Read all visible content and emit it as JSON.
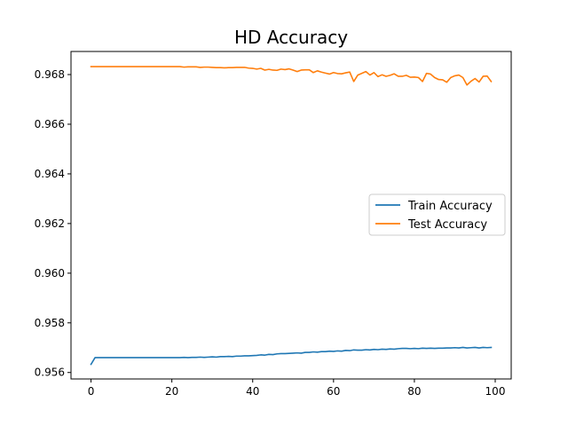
{
  "chart_data": {
    "type": "line",
    "title": "HD Accuracy",
    "xlabel": "",
    "ylabel": "",
    "xlim": [
      -4.95,
      103.95
    ],
    "ylim": [
      0.95574,
      0.96893
    ],
    "xticks": [
      0,
      20,
      40,
      60,
      80,
      100
    ],
    "yticks": [
      0.956,
      0.958,
      0.96,
      0.962,
      0.964,
      0.966,
      0.968
    ],
    "ytick_labels": [
      "0.956",
      "0.958",
      "0.960",
      "0.962",
      "0.964",
      "0.966",
      "0.968"
    ],
    "grid": false,
    "legend_position": "center-right",
    "series": [
      {
        "name": "Train Accuracy",
        "color": "#1f77b4",
        "x": [
          0,
          1,
          2,
          3,
          4,
          5,
          6,
          7,
          8,
          9,
          10,
          11,
          12,
          13,
          14,
          15,
          16,
          17,
          18,
          19,
          20,
          21,
          22,
          23,
          24,
          25,
          26,
          27,
          28,
          29,
          30,
          31,
          32,
          33,
          34,
          35,
          36,
          37,
          38,
          39,
          40,
          41,
          42,
          43,
          44,
          45,
          46,
          47,
          48,
          49,
          50,
          51,
          52,
          53,
          54,
          55,
          56,
          57,
          58,
          59,
          60,
          61,
          62,
          63,
          64,
          65,
          66,
          67,
          68,
          69,
          70,
          71,
          72,
          73,
          74,
          75,
          76,
          77,
          78,
          79,
          80,
          81,
          82,
          83,
          84,
          85,
          86,
          87,
          88,
          89,
          90,
          91,
          92,
          93,
          94,
          95,
          96,
          97,
          98,
          99
        ],
        "values": [
          0.95633,
          0.9566,
          0.9566,
          0.9566,
          0.9566,
          0.9566,
          0.9566,
          0.9566,
          0.9566,
          0.9566,
          0.9566,
          0.9566,
          0.9566,
          0.9566,
          0.9566,
          0.9566,
          0.9566,
          0.9566,
          0.9566,
          0.9566,
          0.9566,
          0.9566,
          0.9566,
          0.95661,
          0.9566,
          0.95661,
          0.95661,
          0.95662,
          0.95661,
          0.95662,
          0.95663,
          0.95662,
          0.95664,
          0.95664,
          0.95665,
          0.95664,
          0.95666,
          0.95666,
          0.95667,
          0.95667,
          0.95668,
          0.95669,
          0.95671,
          0.9567,
          0.95673,
          0.95672,
          0.95675,
          0.95676,
          0.95676,
          0.95677,
          0.95678,
          0.95679,
          0.95678,
          0.95681,
          0.95681,
          0.95683,
          0.95682,
          0.95684,
          0.95684,
          0.95686,
          0.95685,
          0.95687,
          0.95686,
          0.95689,
          0.95688,
          0.95691,
          0.9569,
          0.9569,
          0.95692,
          0.95691,
          0.95693,
          0.95692,
          0.95694,
          0.95693,
          0.95695,
          0.95694,
          0.95696,
          0.95697,
          0.95697,
          0.95696,
          0.95697,
          0.95696,
          0.95698,
          0.95697,
          0.95698,
          0.95697,
          0.95698,
          0.95698,
          0.95699,
          0.95699,
          0.957,
          0.95699,
          0.95701,
          0.95699,
          0.957,
          0.95701,
          0.95699,
          0.95701,
          0.957,
          0.95701
        ]
      },
      {
        "name": "Test Accuracy",
        "color": "#ff7f0e",
        "x": [
          0,
          1,
          2,
          3,
          4,
          5,
          6,
          7,
          8,
          9,
          10,
          11,
          12,
          13,
          14,
          15,
          16,
          17,
          18,
          19,
          20,
          21,
          22,
          23,
          24,
          25,
          26,
          27,
          28,
          29,
          30,
          31,
          32,
          33,
          34,
          35,
          36,
          37,
          38,
          39,
          40,
          41,
          42,
          43,
          44,
          45,
          46,
          47,
          48,
          49,
          50,
          51,
          52,
          53,
          54,
          55,
          56,
          57,
          58,
          59,
          60,
          61,
          62,
          63,
          64,
          65,
          66,
          67,
          68,
          69,
          70,
          71,
          72,
          73,
          74,
          75,
          76,
          77,
          78,
          79,
          80,
          81,
          82,
          83,
          84,
          85,
          86,
          87,
          88,
          89,
          90,
          91,
          92,
          93,
          94,
          95,
          96,
          97,
          98,
          99
        ],
        "values": [
          0.96832,
          0.96832,
          0.96832,
          0.96832,
          0.96832,
          0.96832,
          0.96832,
          0.96832,
          0.96832,
          0.96832,
          0.96832,
          0.96832,
          0.96832,
          0.96832,
          0.96832,
          0.96832,
          0.96832,
          0.96832,
          0.96832,
          0.96832,
          0.96832,
          0.96832,
          0.96832,
          0.9683,
          0.96831,
          0.96831,
          0.96831,
          0.96829,
          0.9683,
          0.9683,
          0.96829,
          0.96828,
          0.96828,
          0.96827,
          0.96828,
          0.96828,
          0.96829,
          0.96829,
          0.96829,
          0.96826,
          0.96825,
          0.96822,
          0.96825,
          0.96818,
          0.96821,
          0.96818,
          0.96817,
          0.96822,
          0.9682,
          0.96823,
          0.96818,
          0.96812,
          0.96818,
          0.96819,
          0.96819,
          0.96808,
          0.96815,
          0.9681,
          0.96806,
          0.96802,
          0.96808,
          0.96804,
          0.96803,
          0.96807,
          0.9681,
          0.96772,
          0.96798,
          0.96805,
          0.96812,
          0.96798,
          0.96808,
          0.96792,
          0.96799,
          0.96793,
          0.96797,
          0.96803,
          0.96793,
          0.96793,
          0.96797,
          0.96789,
          0.9679,
          0.96788,
          0.96772,
          0.96805,
          0.96802,
          0.96788,
          0.9678,
          0.96779,
          0.96769,
          0.96788,
          0.96795,
          0.96798,
          0.96788,
          0.96758,
          0.96773,
          0.96784,
          0.9677,
          0.96793,
          0.96794,
          0.96772
        ]
      }
    ]
  }
}
